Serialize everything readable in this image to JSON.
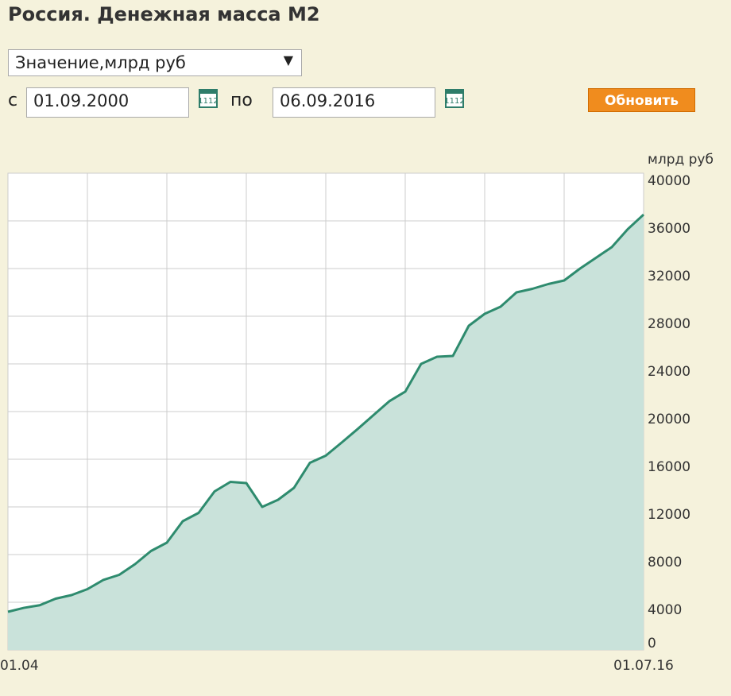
{
  "header": {
    "title": "Россия. Денежная масса М2"
  },
  "controls": {
    "select": "Значение,млрд руб",
    "from_label": "с",
    "from_date": "01.09.2000",
    "to_label": "по",
    "to_date": "06.09.2016",
    "button": "Обновить"
  },
  "chart_data": {
    "type": "area",
    "y_label": "млрд руб",
    "categories": [
      "01.04",
      null,
      null,
      null,
      null,
      null,
      null,
      null,
      null,
      null,
      null,
      null,
      null,
      null,
      null,
      null,
      null,
      null,
      null,
      null,
      null,
      null,
      null,
      null,
      null,
      null,
      null,
      null,
      null,
      null,
      null,
      null,
      null,
      null,
      null,
      null,
      null,
      null,
      null,
      null,
      "01.07.16"
    ],
    "values": [
      3200,
      3530,
      3750,
      4300,
      4600,
      5100,
      5870,
      6300,
      7200,
      8300,
      9000,
      10800,
      11500,
      13300,
      14100,
      14000,
      12000,
      12600,
      13600,
      15700,
      16300,
      17400,
      18530,
      19700,
      20870,
      21670,
      24000,
      24600,
      24670,
      27200,
      28200,
      28800,
      30000,
      30300,
      30700,
      31000,
      32000,
      32900,
      33800,
      35300,
      36530
    ],
    "color": "#2e8b6e",
    "fill": "#c9e2da",
    "ylim": [
      0,
      40000
    ],
    "yticks": [
      0,
      4000,
      8000,
      12000,
      16000,
      20000,
      24000,
      28000,
      32000,
      36000,
      40000
    ],
    "grid": true
  }
}
